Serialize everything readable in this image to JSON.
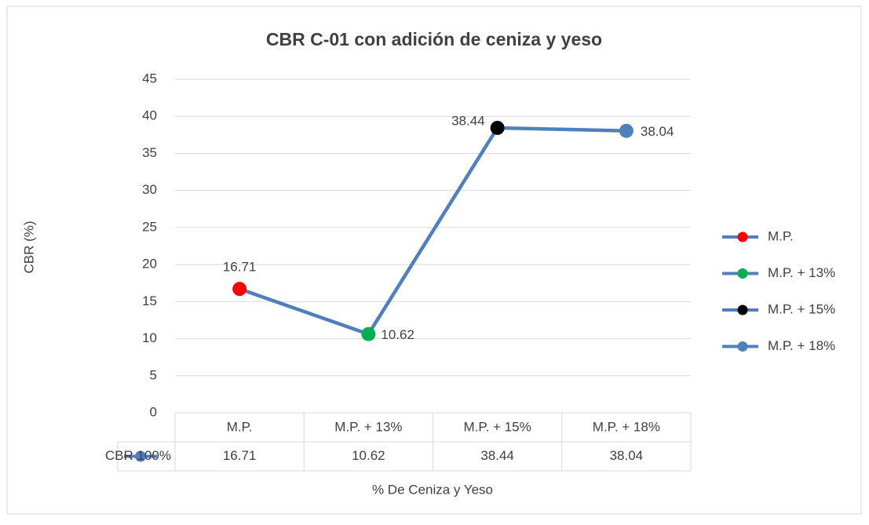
{
  "chart_data": {
    "type": "line",
    "title": "CBR C-01 con adición de ceniza y yeso",
    "y_label": "CBR (%)",
    "x_label": "% De Ceniza y Yeso",
    "categories": [
      "M.P.",
      "M.P. + 13%",
      "M.P. + 15%",
      "M.P. + 18%"
    ],
    "series": [
      {
        "name": "CBR 100%",
        "color": "#4f7fbc",
        "values": [
          16.71,
          10.62,
          38.44,
          38.04
        ],
        "point_colors": [
          "#ff0000",
          "#00b050",
          "#000000",
          "#4f7fbc"
        ]
      }
    ],
    "ylim": [
      0,
      45
    ],
    "yticks": [
      0,
      5,
      10,
      15,
      20,
      25,
      30,
      35,
      40,
      45
    ],
    "grid": true,
    "legend": "right",
    "data_table": true
  }
}
